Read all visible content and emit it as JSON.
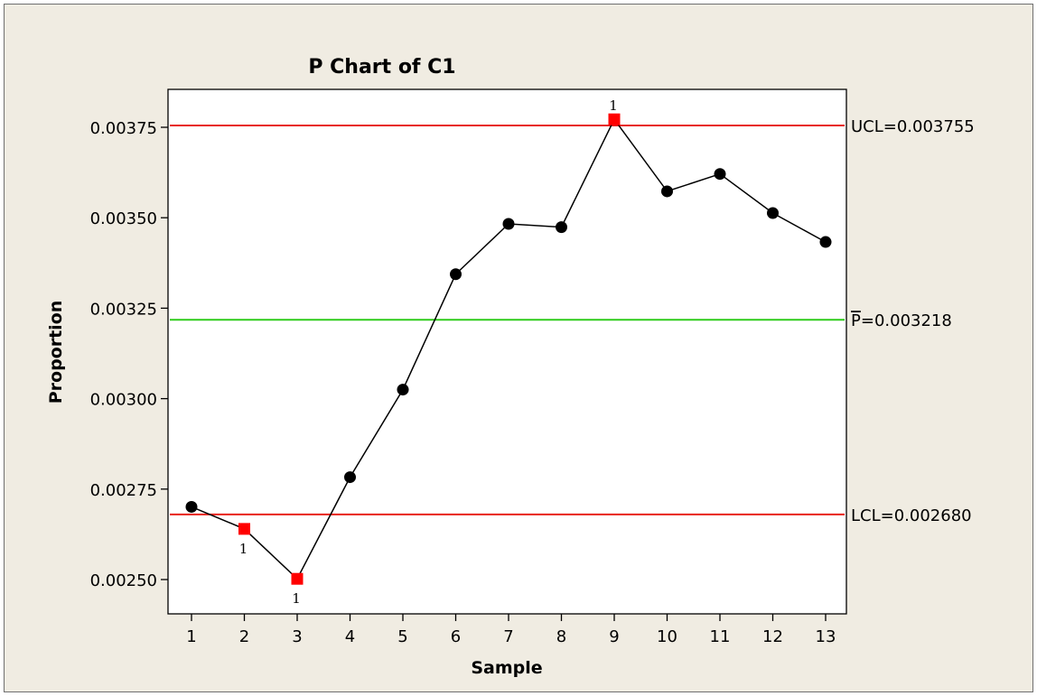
{
  "colors": {
    "background": "#f0ece2",
    "plot_background": "#ffffff",
    "limit_line": "#e8221b",
    "center_line": "#2ecc1a",
    "series": "#000000",
    "out_of_control": "#ff0000"
  },
  "chart_data": {
    "type": "line",
    "title": "P Chart of C1",
    "xlabel": "Sample",
    "ylabel": "Proportion",
    "xlim": [
      0.6,
      13.4
    ],
    "ylim": [
      0.00244,
      0.00388
    ],
    "x_ticks": [
      "1",
      "2",
      "3",
      "4",
      "5",
      "6",
      "7",
      "8",
      "9",
      "10",
      "11",
      "12",
      "13"
    ],
    "y_ticks": [
      "0.00250",
      "0.00275",
      "0.00300",
      "0.00325",
      "0.00350",
      "0.00375"
    ],
    "y_tick_values": [
      0.0025,
      0.00275,
      0.003,
      0.00325,
      0.0035,
      0.00375
    ],
    "series": [
      {
        "x": [
          1,
          2,
          3,
          4,
          5,
          6,
          7,
          8,
          9,
          10,
          11,
          12,
          13
        ],
        "values": [
          0.002701,
          0.00264,
          0.002502,
          0.002783,
          0.003025,
          0.003344,
          0.003483,
          0.003474,
          0.003772,
          0.003573,
          0.003621,
          0.003513,
          0.003433
        ],
        "out_of_control": [
          false,
          true,
          true,
          false,
          false,
          false,
          false,
          false,
          true,
          false,
          false,
          false,
          false
        ]
      }
    ],
    "control_limits": [
      {
        "kind": "UCL",
        "value": 0.003755,
        "label": "UCL=0.003755"
      },
      {
        "kind": "CL",
        "value": 0.003218,
        "label_bar": "P",
        "label_rest": "=0.003218"
      },
      {
        "kind": "LCL",
        "value": 0.00268,
        "label": "LCL=0.002680"
      }
    ],
    "test_flag": "1",
    "grid": false
  }
}
